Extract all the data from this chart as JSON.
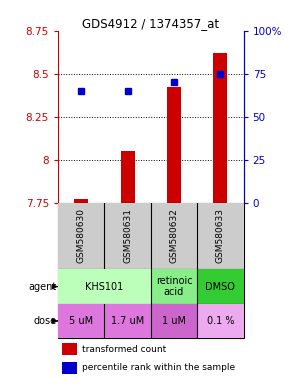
{
  "title": "GDS4912 / 1374357_at",
  "samples": [
    "GSM580630",
    "GSM580631",
    "GSM580632",
    "GSM580633"
  ],
  "bar_values": [
    7.77,
    8.05,
    8.42,
    8.62
  ],
  "bar_base": 7.75,
  "percentile_values": [
    65,
    65,
    70,
    75
  ],
  "ylim_left": [
    7.75,
    8.75
  ],
  "ylim_right": [
    0,
    100
  ],
  "yticks_left": [
    7.75,
    8.0,
    8.25,
    8.5,
    8.75
  ],
  "yticks_right": [
    0,
    25,
    50,
    75,
    100
  ],
  "ytick_labels_left": [
    "7.75",
    "8",
    "8.25",
    "8.5",
    "8.75"
  ],
  "ytick_labels_right": [
    "0",
    "25",
    "50",
    "75",
    "100%"
  ],
  "gridlines": [
    8.0,
    8.25,
    8.5
  ],
  "bar_color": "#cc0000",
  "dot_color": "#0000cc",
  "dose_labels": [
    "5 uM",
    "1.7 uM",
    "1 uM",
    "0.1 %"
  ],
  "dose_color": "#dd77dd",
  "dose_color_light": "#eeaaee",
  "sample_box_color": "#cccccc",
  "left_label_color": "#cc0000",
  "right_label_color": "#0000cc",
  "agent_groups": [
    {
      "cols": [
        0,
        1
      ],
      "text": "KHS101",
      "color": "#bbffbb"
    },
    {
      "cols": [
        2
      ],
      "text": "retinoic\nacid",
      "color": "#88ee88"
    },
    {
      "cols": [
        3
      ],
      "text": "DMSO",
      "color": "#33cc33"
    }
  ],
  "dose_colors": [
    "#dd77dd",
    "#dd77dd",
    "#cc66cc",
    "#eeaaee"
  ]
}
